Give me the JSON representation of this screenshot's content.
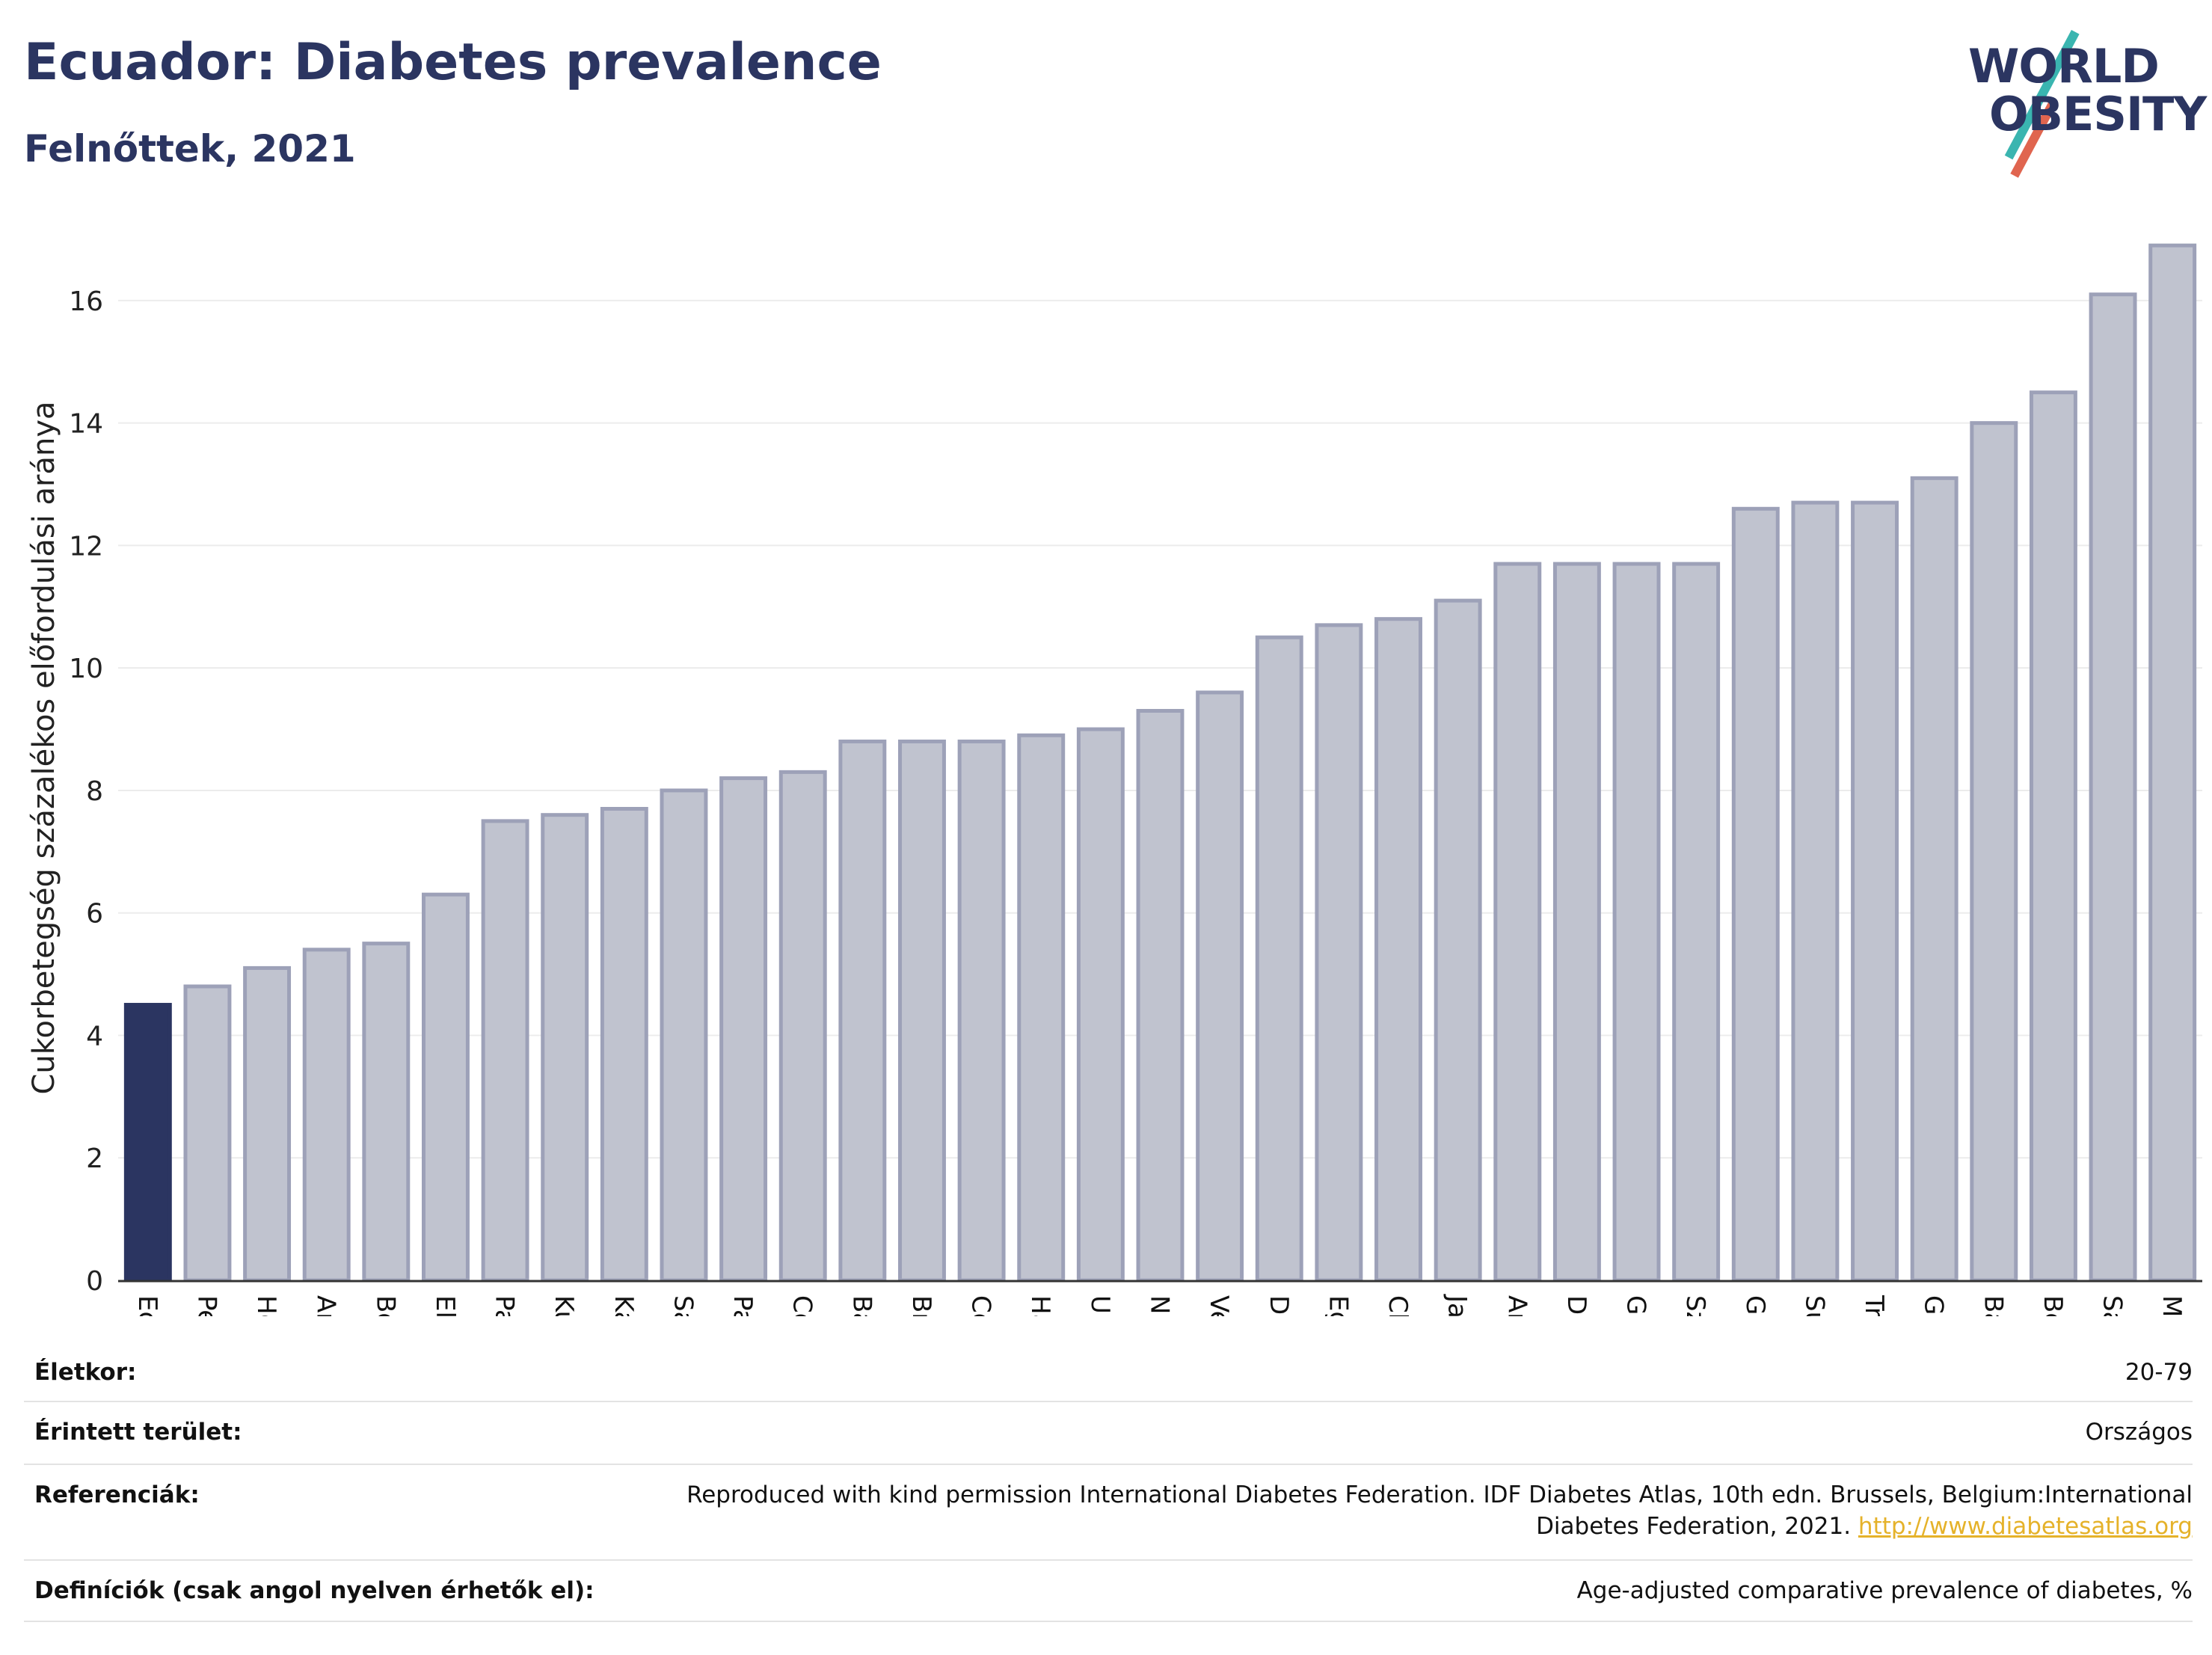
{
  "header": {
    "title": "Ecuador: Diabetes prevalence",
    "subtitle": "Felnőttek, 2021",
    "logo_line1": "WORLD",
    "logo_line2": "OBESITY"
  },
  "colors": {
    "highlight": "#2b3561",
    "bar_fill": "#c0c3cf",
    "bar_stroke": "#9da1b8",
    "grid": "#ececec",
    "axis": "#333333"
  },
  "chart_data": {
    "type": "bar",
    "ylabel": "Cukorbetegség százalékos előfordulási aránya",
    "xlabel": "",
    "ylim": [
      0,
      17
    ],
    "yticks": [
      0,
      2,
      4,
      6,
      8,
      10,
      12,
      14,
      16
    ],
    "grid": true,
    "highlight_category": "Ecuador",
    "categories": [
      "Ecuador",
      "Peru",
      "Honduras",
      "Argentína",
      "Bolívia",
      "El Salvador",
      "Paraguay",
      "Kuba",
      "Kanada",
      "Saint Vincent és a Grenadines",
      "Panama",
      "Colombia",
      "Bahama-szigetek",
      "Brazília",
      "Costa Rica",
      "Haiti",
      "Uruguay",
      "Nicaragua",
      "Venezuela",
      "Dominikai Köztársaság",
      "Egyesült Államok",
      "Chile",
      "Jamaica",
      "Antigua és Barbuda",
      "Dominikai Közösség",
      "Guyana",
      "Szent Lucia",
      "Grenada",
      "Suriname",
      "Trinidad és Tobago",
      "Guatemala",
      "Barbados",
      "Belize",
      "Saint Kitts és Nevis",
      "Mexikó"
    ],
    "values": [
      4.5,
      4.8,
      5.1,
      5.4,
      5.5,
      6.3,
      7.5,
      7.6,
      7.7,
      8.0,
      8.2,
      8.3,
      8.8,
      8.8,
      8.8,
      8.9,
      9.0,
      9.3,
      9.6,
      10.5,
      10.7,
      10.8,
      11.1,
      11.7,
      11.7,
      11.7,
      11.7,
      12.6,
      12.7,
      12.7,
      13.1,
      14.0,
      14.5,
      16.1,
      16.9
    ]
  },
  "footer": {
    "age_label": "Életkor:",
    "age_value": "20-79",
    "area_label": "Érintett terület:",
    "area_value": "Országos",
    "ref_label": "Referenciák:",
    "ref_value_line1": "Reproduced with kind permission International Diabetes Federation.  IDF Diabetes Atlas, 10th edn. Brussels, Belgium:International",
    "ref_value_line2": "Diabetes Federation, 2021.",
    "ref_link": "http://www.diabetesatlas.org",
    "def_label": "Definíciók (csak angol nyelven érhetők el):",
    "def_value": "Age-adjusted comparative prevalence of diabetes, %"
  }
}
